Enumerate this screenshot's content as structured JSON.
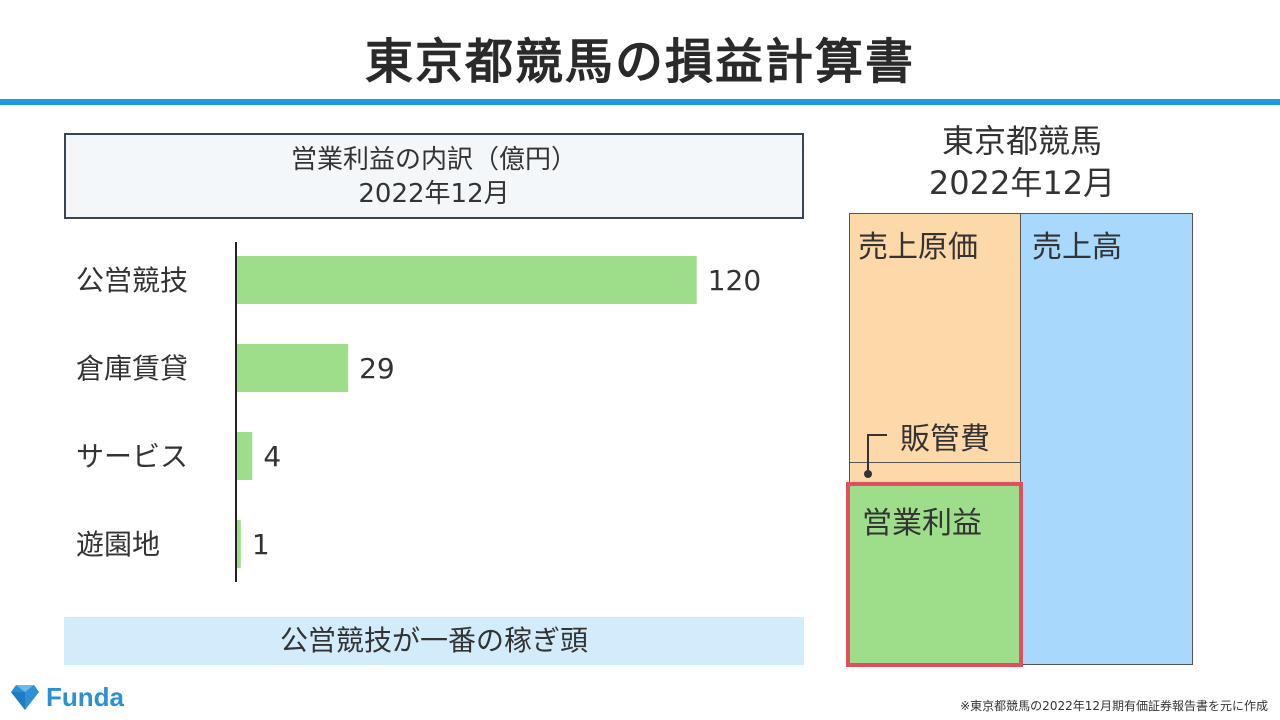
{
  "title": "東京都競馬の損益計算書",
  "chart_box": {
    "line1": "営業利益の内訳（億円）",
    "line2": "2022年12月"
  },
  "chart_data": {
    "type": "bar",
    "orientation": "horizontal",
    "title": "営業利益の内訳（億円）",
    "subtitle": "2022年12月",
    "categories": [
      "公営競技",
      "倉庫賃貸",
      "サービス",
      "遊園地"
    ],
    "values": [
      120,
      29,
      4,
      1
    ],
    "bar_color": "#9edd8a",
    "xlim": [
      0,
      130
    ],
    "grid": false,
    "legend": "none"
  },
  "summary": "公営競技が一番の稼ぎ頭",
  "right_panel": {
    "company": "東京都競馬",
    "period": "2022年12月",
    "cost_of_sales": "売上原価",
    "sales": "売上高",
    "sga": "販管費",
    "operating_profit": "営業利益",
    "colors": {
      "cost": "#fdd8a8",
      "sales": "#a8d8fb",
      "profit": "#9edd8a",
      "highlight": "#e04e60"
    }
  },
  "logo": {
    "text": "Funda",
    "icon": "funda-diamond-icon",
    "color": "#2d8fd5"
  },
  "source_note": "※東京都競馬の2022年12月期有価証券報告書を元に作成",
  "accent_color": "#1e9be0"
}
